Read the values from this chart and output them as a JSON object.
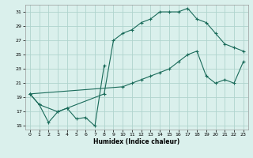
{
  "xlabel": "Humidex (Indice chaleur)",
  "bg_color": "#daf0ec",
  "grid_color": "#afd4ce",
  "line_color": "#1a6b5a",
  "xlim": [
    -0.5,
    23.5
  ],
  "ylim": [
    14.5,
    32.0
  ],
  "yticks": [
    15,
    17,
    19,
    21,
    23,
    25,
    27,
    29,
    31
  ],
  "xticks": [
    0,
    1,
    2,
    3,
    4,
    5,
    6,
    7,
    8,
    9,
    10,
    11,
    12,
    13,
    14,
    15,
    16,
    17,
    18,
    19,
    20,
    21,
    22,
    23
  ],
  "line1_x": [
    0,
    1,
    2,
    3,
    4,
    5,
    6,
    7,
    8
  ],
  "line1_y": [
    19.5,
    18.0,
    15.5,
    17.0,
    17.5,
    16.0,
    16.2,
    15.0,
    23.5
  ],
  "line2_x": [
    0,
    1,
    3,
    4,
    8,
    9,
    10,
    11,
    12,
    13,
    14,
    15,
    16,
    17,
    18,
    19,
    20,
    21,
    22,
    23
  ],
  "line2_y": [
    19.5,
    18.0,
    17.0,
    17.5,
    19.5,
    27.0,
    28.0,
    28.5,
    29.5,
    30.0,
    31.0,
    31.0,
    31.0,
    31.5,
    30.0,
    29.5,
    28.0,
    26.5,
    26.0,
    25.5
  ],
  "line3_x": [
    0,
    10,
    11,
    12,
    13,
    14,
    15,
    16,
    17,
    18,
    19,
    20,
    21,
    22,
    23
  ],
  "line3_y": [
    19.5,
    20.5,
    21.0,
    21.5,
    22.0,
    22.5,
    23.0,
    24.0,
    25.0,
    25.5,
    22.0,
    21.0,
    21.5,
    21.0,
    24.0
  ]
}
